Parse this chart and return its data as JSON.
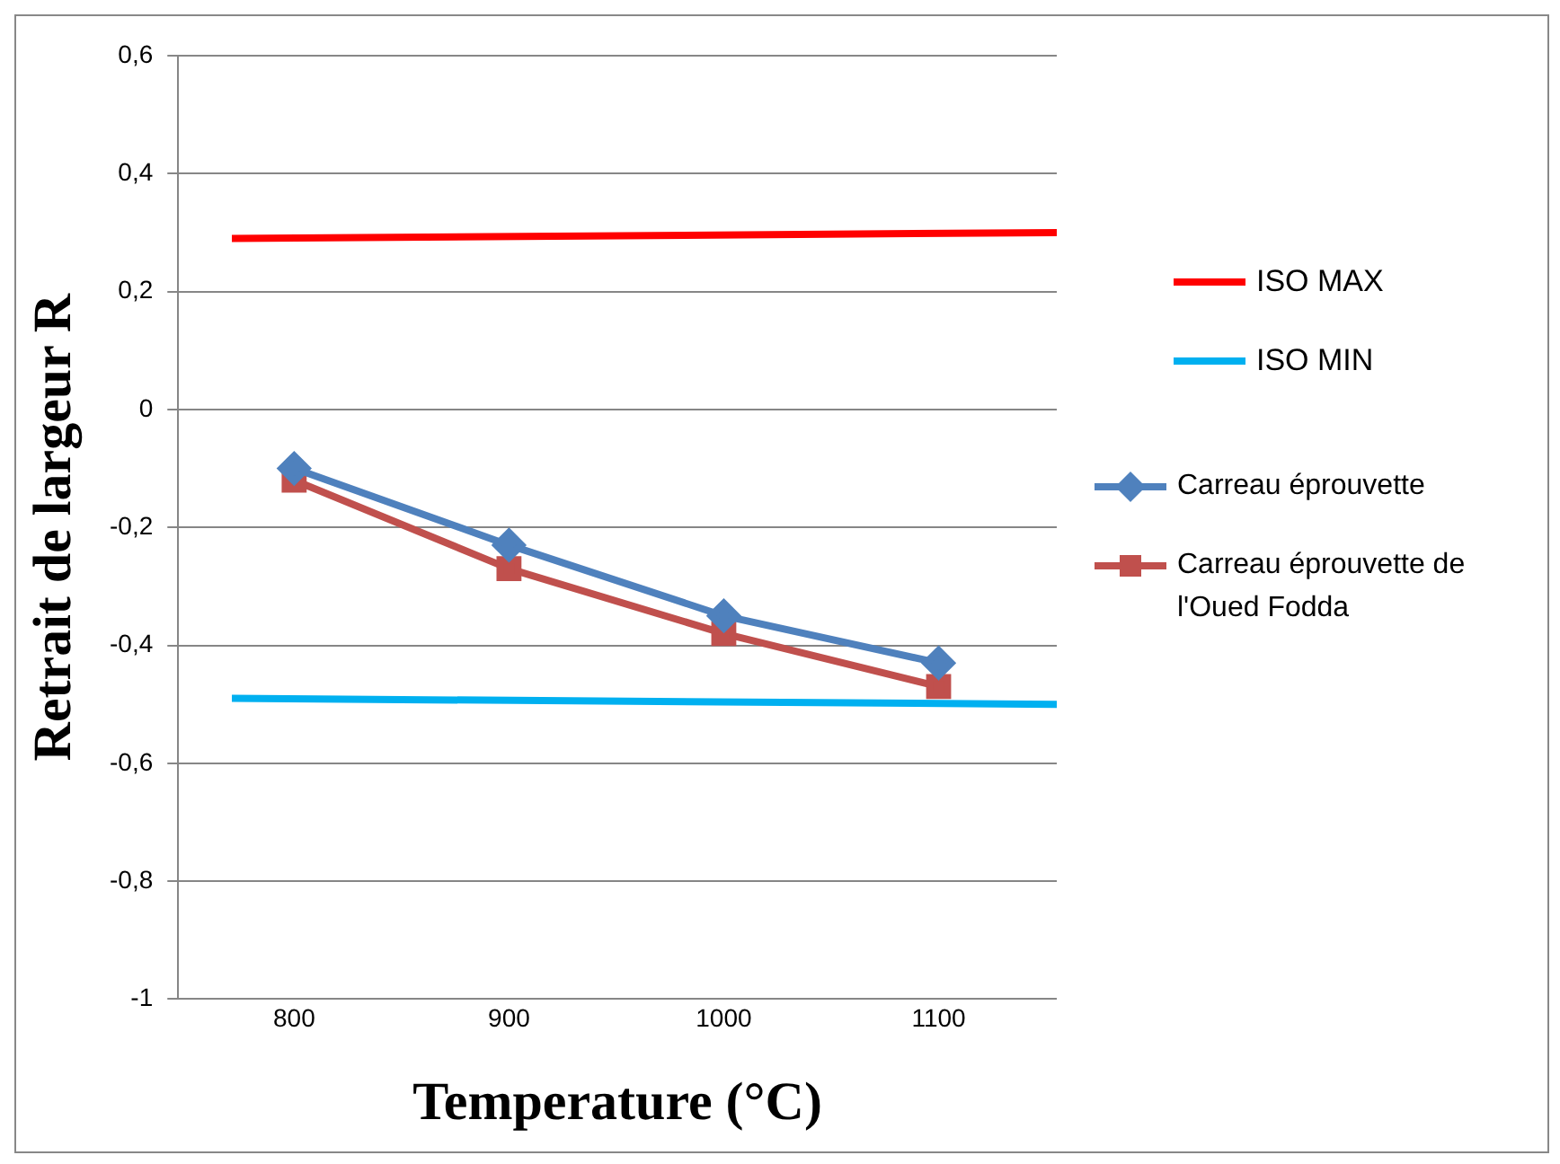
{
  "chart_data": {
    "type": "line",
    "xlabel": "Temperature (°C)",
    "ylabel": "Retrait de largeur R",
    "x": [
      771,
      800,
      900,
      1000,
      1100,
      1155
    ],
    "xlim": [
      746,
      1155
    ],
    "xticks": [
      800,
      900,
      1000,
      1100
    ],
    "ylim": [
      -1,
      0.6
    ],
    "yticks": [
      {
        "value": -1,
        "label": "-1"
      },
      {
        "value": -0.8,
        "label": "-0,8"
      },
      {
        "value": -0.6,
        "label": "-0,6"
      },
      {
        "value": -0.4,
        "label": "-0,4"
      },
      {
        "value": -0.2,
        "label": "-0,2"
      },
      {
        "value": 0,
        "label": "0"
      },
      {
        "value": 0.2,
        "label": "0,2"
      },
      {
        "value": 0.4,
        "label": "0,4"
      },
      {
        "value": 0.6,
        "label": "0,6"
      }
    ],
    "grid": "y",
    "legend": "right",
    "series": [
      {
        "name": "ISO MAX",
        "color": "#ff0000",
        "values": [
          0.29,
          null,
          null,
          null,
          null,
          0.3
        ],
        "marker": "none"
      },
      {
        "name": "ISO MIN",
        "color": "#00b0f0",
        "values": [
          -0.49,
          null,
          null,
          null,
          null,
          -0.5
        ],
        "marker": "none"
      },
      {
        "name": "Carreau éprouvette",
        "color": "#4f81bd",
        "values": [
          null,
          -0.1,
          -0.23,
          -0.35,
          -0.43,
          null
        ],
        "marker": "diamond"
      },
      {
        "name": "Carreau éprouvette de l'Oued Fodda",
        "color": "#c0504d",
        "values": [
          null,
          -0.12,
          -0.27,
          -0.38,
          -0.47,
          null
        ],
        "marker": "square"
      }
    ]
  }
}
